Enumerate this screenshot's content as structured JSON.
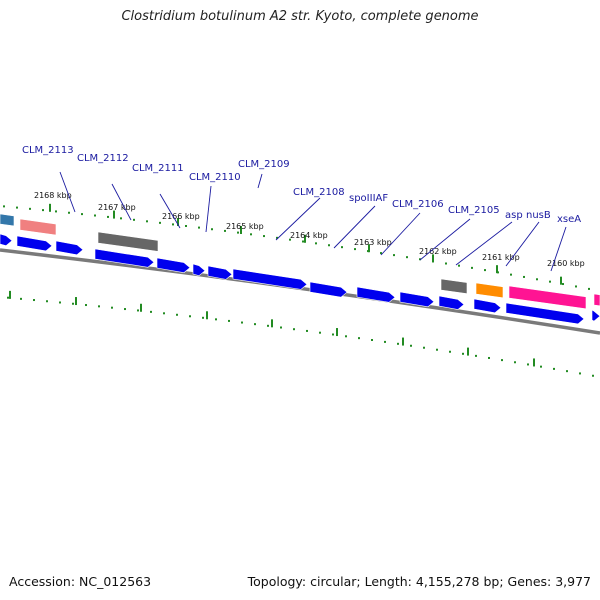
{
  "title": "Clostridium botulinum A2 str. Kyoto, complete genome",
  "footer": {
    "accession": "Accession: NC_012563",
    "stats": "Topology: circular; Length: 4,155,278 bp; Genes: 3,977"
  },
  "colors": {
    "cds": "#0000ee",
    "trna": "#666666",
    "rrna": "#f08080",
    "misc": "#ff1493",
    "orange": "#ff8c00",
    "teal": "#3377aa",
    "tick": "#228b22",
    "backbone": "#808080",
    "label": "#1a1aa0"
  },
  "tick_labels": [
    "2168 kbp",
    "2167 kbp",
    "2166 kbp",
    "2165 kbp",
    "2164 kbp",
    "2163 kbp",
    "2162 kbp",
    "2161 kbp",
    "2160 kbp"
  ],
  "gene_labels": [
    "CLM_2113",
    "CLM_2112",
    "CLM_2111",
    "CLM_2110",
    "CLM_2109",
    "CLM_2108",
    "spoIIIAF",
    "CLM_2106",
    "CLM_2105",
    "asp",
    "nusB",
    "xseA"
  ]
}
